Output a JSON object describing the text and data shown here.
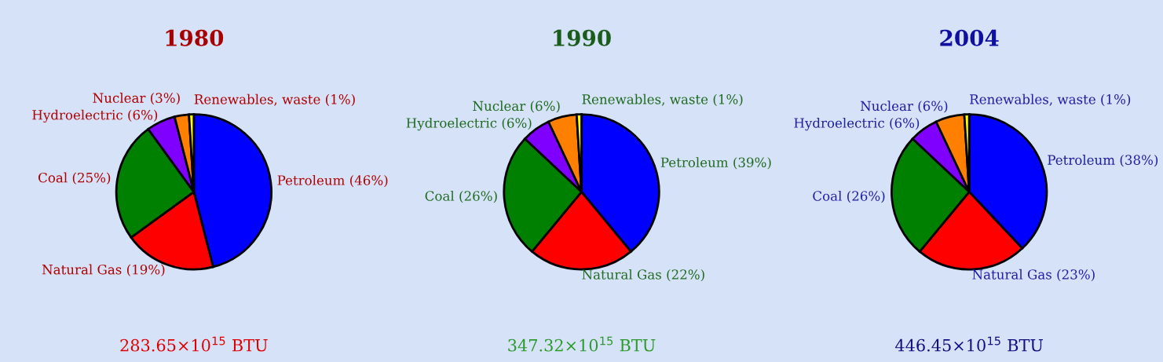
{
  "chart_data": [
    {
      "type": "pie",
      "title": "1980",
      "categories": [
        "Petroleum (46%)",
        "Natural Gas (19%)",
        "Coal (25%)",
        "Hydroelectric (6%)",
        "Nuclear (3%)",
        "Renewables, waste (1%)"
      ],
      "values": [
        46,
        19,
        25,
        6,
        3,
        1
      ],
      "colors": [
        "#0000ff",
        "#ff0000",
        "#008000",
        "#8000ff",
        "#ff8000",
        "#ffff00"
      ],
      "annotations": [
        "283.65×10$^{15}$ BTU"
      ]
    },
    {
      "type": "pie",
      "title": "1990",
      "categories": [
        "Petroleum (39%)",
        "Natural Gas (22%)",
        "Coal (26%)",
        "Hydroelectric (6%)",
        "Nuclear (6%)",
        "Renewables, waste (1%)"
      ],
      "values": [
        39,
        22,
        26,
        6,
        6,
        1
      ],
      "colors": [
        "#0000ff",
        "#ff0000",
        "#008000",
        "#8000ff",
        "#ff8000",
        "#ffff00"
      ],
      "annotations": [
        "347.32×10$^{15}$ BTU"
      ]
    },
    {
      "type": "pie",
      "title": "2004",
      "categories": [
        "Petroleum (38%)",
        "Natural Gas (23%)",
        "Coal (26%)",
        "Hydroelectric (6%)",
        "Nuclear (6%)",
        "Renewables, waste (1%)"
      ],
      "values": [
        38,
        23,
        26,
        6,
        6,
        1
      ],
      "colors": [
        "#0000ff",
        "#ff0000",
        "#008000",
        "#8000ff",
        "#ff8000",
        "#ffff00"
      ],
      "annotations": [
        "446.45×10$^{15}$ BTU"
      ]
    }
  ]
}
